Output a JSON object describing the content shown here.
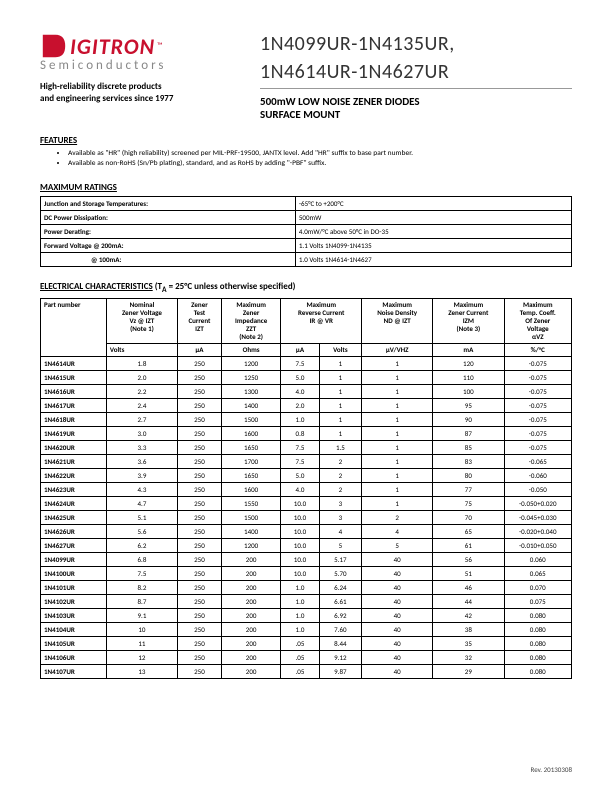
{
  "logo": {
    "brand": "IGITRON",
    "tm": "™",
    "sub": "Semiconductors"
  },
  "tagline": {
    "l1": "High-reliability discrete products",
    "l2": "and engineering services since 1977"
  },
  "title": {
    "l1": "1N4099UR-1N4135UR,",
    "l2": "1N4614UR-1N4627UR"
  },
  "subtitle": {
    "l1": "500mW LOW NOISE ZENER DIODES",
    "l2": "SURFACE MOUNT"
  },
  "features": {
    "heading": "FEATURES",
    "items": [
      "Available as \"HR\" (high reliability) screened per MIL-PRF-19500, JANTX level.  Add \"HR\" suffix to base part number.",
      "Available as non-RoHS (Sn/Pb plating), standard, and as RoHS by adding \"-PBF\" suffix."
    ]
  },
  "ratings": {
    "heading": "MAXIMUM RATINGS",
    "rows": [
      {
        "label": "Junction and Storage Temperatures:",
        "value": "-65°C to +200°C"
      },
      {
        "label": "DC Power Dissipation:",
        "value": "500mW"
      },
      {
        "label": "Power Derating:",
        "value": "4.0mW/°C above 50°C in DO-35"
      },
      {
        "label": "Forward Voltage  @ 200mA:",
        "value": "1.1 Volts 1N4099-1N4135"
      },
      {
        "label": "@ 100mA:",
        "value": "1.0 Volts 1N4614-1N4627",
        "indent": true
      }
    ]
  },
  "elec": {
    "heading_prefix": "ELECTRICAL CHARACTERISTICS",
    "heading_suffix": " (T",
    "heading_sub": "A",
    "heading_rest": " = 25°C unless otherwise specified)",
    "headers": [
      {
        "main": "Part number",
        "unit": ""
      },
      {
        "main": "Nominal\nZener Voltage\nVz @ IZT\n(Note 1)",
        "unit": "Volts"
      },
      {
        "main": "Zener\nTest\nCurrent\nIZT",
        "unit": "µA"
      },
      {
        "main": "Maximum\nZener\nImpedance\nZZT\n(Note 2)",
        "unit": "Ohms"
      },
      {
        "main": "",
        "unit": "µA"
      },
      {
        "main": "",
        "unit": "Volts"
      },
      {
        "main": "Maximum\nNoise Density\nND @ IZT",
        "unit": "µV/VHZ"
      },
      {
        "main": "Maximum\nZener Current\nIZM\n(Note 3)",
        "unit": "mA"
      },
      {
        "main": "Maximum\nTemp. Coeff.\nOf Zener\nVoltage\nαVZ",
        "unit": "%/°C"
      }
    ],
    "rev_header": "Maximum\nReverse Current\nIR @ VR",
    "rows": [
      [
        "1N4614UR",
        "1.8",
        "250",
        "1200",
        "7.5",
        "1",
        "1",
        "120",
        "-0.075"
      ],
      [
        "1N4615UR",
        "2.0",
        "250",
        "1250",
        "5.0",
        "1",
        "1",
        "110",
        "-0.075"
      ],
      [
        "1N4616UR",
        "2.2",
        "250",
        "1300",
        "4.0",
        "1",
        "1",
        "100",
        "-0.075"
      ],
      [
        "1N4617UR",
        "2.4",
        "250",
        "1400",
        "2.0",
        "1",
        "1",
        "95",
        "-0.075"
      ],
      [
        "1N4618UR",
        "2.7",
        "250",
        "1500",
        "1.0",
        "1",
        "1",
        "90",
        "-0.075"
      ],
      [
        "1N4619UR",
        "3.0",
        "250",
        "1600",
        "0.8",
        "1",
        "1",
        "87",
        "-0.075"
      ],
      [
        "1N4620UR",
        "3.3",
        "250",
        "1650",
        "7.5",
        "1.5",
        "1",
        "85",
        "-0.075"
      ],
      [
        "1N4621UR",
        "3.6",
        "250",
        "1700",
        "7.5",
        "2",
        "1",
        "83",
        "-0.065"
      ],
      [
        "1N4622UR",
        "3.9",
        "250",
        "1650",
        "5.0",
        "2",
        "1",
        "80",
        "-0.060"
      ],
      [
        "1N4623UR",
        "4.3",
        "250",
        "1600",
        "4.0",
        "2",
        "1",
        "77",
        "-0.050"
      ],
      [
        "1N4624UR",
        "4.7",
        "250",
        "1550",
        "10.0",
        "3",
        "1",
        "75",
        "-0.050+0.020"
      ],
      [
        "1N4625UR",
        "5.1",
        "250",
        "1500",
        "10.0",
        "3",
        "2",
        "70",
        "-0.045+0.030"
      ],
      [
        "1N4626UR",
        "5.6",
        "250",
        "1400",
        "10.0",
        "4",
        "4",
        "65",
        "-0.020+0.040"
      ],
      [
        "1N4627UR",
        "6.2",
        "250",
        "1200",
        "10.0",
        "5",
        "5",
        "61",
        "-0.010+0.050"
      ],
      [
        "1N4099UR",
        "6.8",
        "250",
        "200",
        "10.0",
        "5.17",
        "40",
        "56",
        "0.060"
      ],
      [
        "1N4100UR",
        "7.5",
        "250",
        "200",
        "10.0",
        "5.70",
        "40",
        "51",
        "0.065"
      ],
      [
        "1N4101UR",
        "8.2",
        "250",
        "200",
        "1.0",
        "6.24",
        "40",
        "46",
        "0.070"
      ],
      [
        "1N4102UR",
        "8.7",
        "250",
        "200",
        "1.0",
        "6.61",
        "40",
        "44",
        "0.075"
      ],
      [
        "1N4103UR",
        "9.1",
        "250",
        "200",
        "1.0",
        "6.92",
        "40",
        "42",
        "0.080"
      ],
      [
        "1N4104UR",
        "10",
        "250",
        "200",
        "1.0",
        "7.60",
        "40",
        "38",
        "0.080"
      ],
      [
        "1N4105UR",
        "11",
        "250",
        "200",
        ".05",
        "8.44",
        "40",
        "35",
        "0.080"
      ],
      [
        "1N4106UR",
        "12",
        "250",
        "200",
        ".05",
        "9.12",
        "40",
        "32",
        "0.080"
      ],
      [
        "1N4107UR",
        "13",
        "250",
        "200",
        ".05",
        "9.87",
        "40",
        "29",
        "0.080"
      ]
    ]
  },
  "footer": {
    "rev": "Rev. 20130308"
  }
}
